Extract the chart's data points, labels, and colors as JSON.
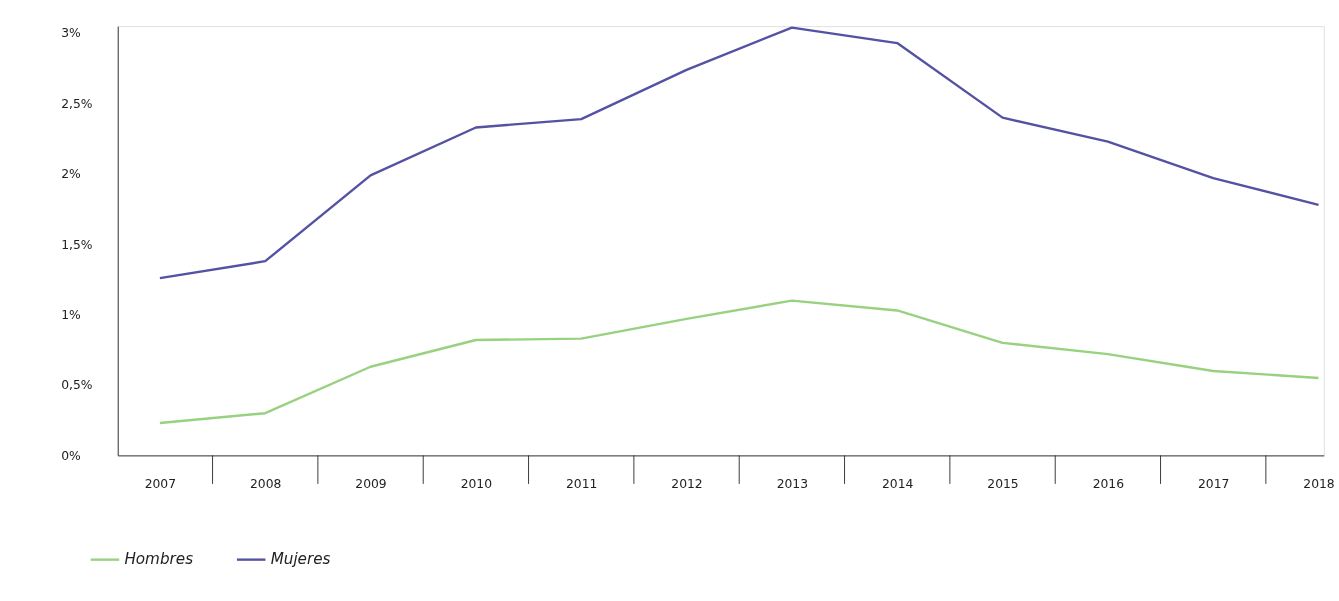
{
  "chart_data": {
    "type": "line",
    "categories": [
      "2007",
      "2008",
      "2009",
      "2010",
      "2011",
      "2012",
      "2013",
      "2014",
      "2015",
      "2016",
      "2017",
      "2018"
    ],
    "series": [
      {
        "name": "Hombres",
        "color": "#98d17f",
        "values": [
          0.23,
          0.3,
          0.63,
          0.82,
          0.83,
          0.97,
          1.1,
          1.03,
          0.8,
          0.72,
          0.6,
          0.55
        ]
      },
      {
        "name": "Mujeres",
        "color": "#5352a3",
        "values": [
          1.26,
          1.38,
          1.99,
          2.33,
          2.39,
          2.74,
          3.04,
          2.93,
          2.4,
          2.23,
          1.97,
          1.78
        ]
      }
    ],
    "ylim": [
      0,
      3.05
    ],
    "yticks": [
      {
        "value": 0,
        "label": "0%"
      },
      {
        "value": 0.5,
        "label": "0,5%"
      },
      {
        "value": 1,
        "label": "1%"
      },
      {
        "value": 1.5,
        "label": "1,5%"
      },
      {
        "value": 2,
        "label": "2%"
      },
      {
        "value": 2.5,
        "label": "2,5%"
      },
      {
        "value": 3,
        "label": "3%"
      }
    ],
    "grid": false,
    "legend": "bottom left",
    "marker": "none",
    "line_style": "solid"
  }
}
